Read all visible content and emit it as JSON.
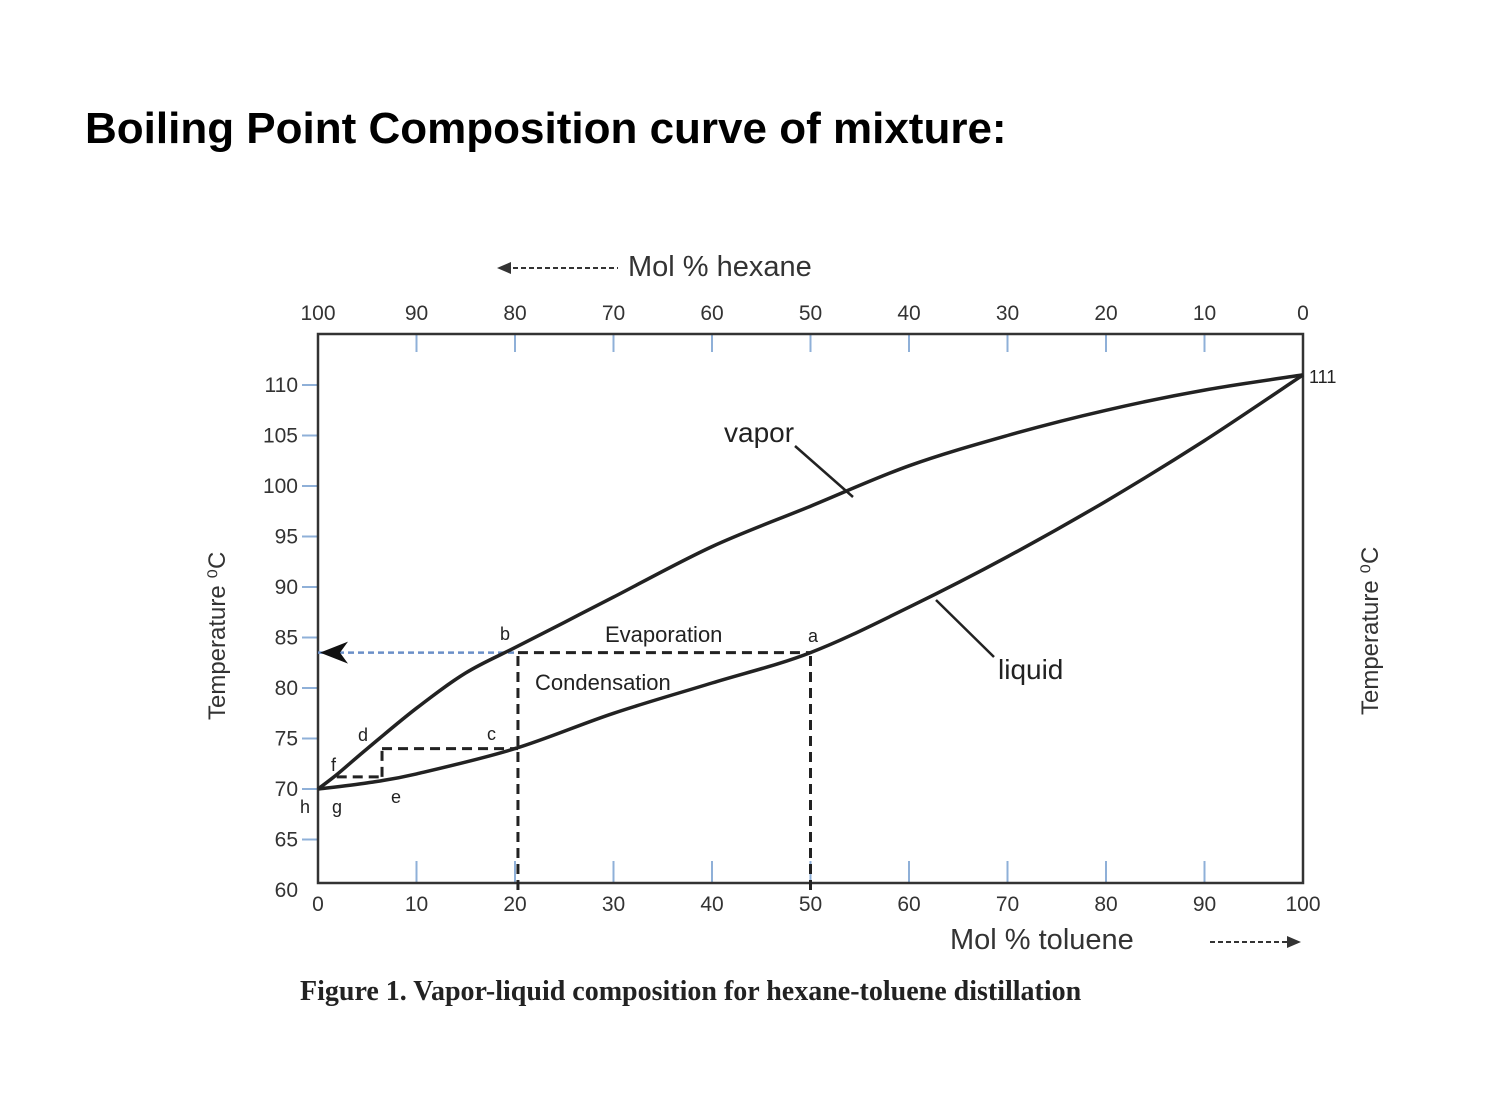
{
  "title": "Boiling Point Composition curve of mixture:",
  "chart_data": {
    "type": "line",
    "caption": "Figure 1. Vapor-liquid composition for hexane-toluene distillation",
    "xlabel": "Mol % toluene",
    "x2label": "Mol % hexane",
    "ylabel": "Temperature ⁰C",
    "y2label": "Temperature ⁰C",
    "xlim": [
      0,
      100
    ],
    "ylim": [
      60,
      110
    ],
    "x_ticks": [
      "0",
      "10",
      "20",
      "30",
      "40",
      "50",
      "60",
      "70",
      "80",
      "90",
      "100"
    ],
    "x2_ticks": [
      "100",
      "90",
      "80",
      "70",
      "60",
      "50",
      "40",
      "30",
      "20",
      "10",
      "0"
    ],
    "y_ticks": [
      "60",
      "65",
      "70",
      "75",
      "80",
      "85",
      "90",
      "95",
      "100",
      "105",
      "110"
    ],
    "y2_end_label": "111",
    "series": [
      {
        "name": "vapor",
        "x": [
          0,
          2,
          5,
          10,
          15,
          20,
          25,
          30,
          40,
          50,
          60,
          70,
          80,
          90,
          100
        ],
        "y": [
          70,
          71.5,
          74,
          78,
          81.5,
          84,
          86.5,
          89,
          94,
          98,
          102,
          105,
          107.5,
          109.5,
          111
        ]
      },
      {
        "name": "liquid",
        "x": [
          0,
          5,
          10,
          20,
          30,
          40,
          50,
          60,
          70,
          80,
          90,
          100
        ],
        "y": [
          70,
          70.6,
          71.5,
          74,
          77.5,
          80.5,
          83.5,
          88,
          93,
          98.5,
          104.5,
          111
        ]
      }
    ],
    "annotations": {
      "vapor": "vapor",
      "liquid": "liquid",
      "evaporation": "Evaporation",
      "condensation": "Condensation",
      "points": [
        "a",
        "b",
        "c",
        "d",
        "e",
        "f",
        "g",
        "h"
      ]
    },
    "construction_lines": [
      {
        "x": [
          50,
          50
        ],
        "y": [
          60,
          83.5
        ]
      },
      {
        "x": [
          20.3,
          50
        ],
        "y": [
          83.5,
          83.5
        ]
      },
      {
        "x": [
          20.3,
          20.3
        ],
        "y": [
          60,
          83.5
        ]
      },
      {
        "x": [
          0,
          20.3
        ],
        "y": [
          83.5,
          83.5
        ]
      },
      {
        "x": [
          6.5,
          20.3
        ],
        "y": [
          74,
          74
        ]
      },
      {
        "x": [
          6.5,
          6.5
        ],
        "y": [
          71.2,
          74
        ]
      },
      {
        "x": [
          1.9,
          6.5
        ],
        "y": [
          71.2,
          71.2
        ]
      }
    ],
    "colors": {
      "curve": "#222222",
      "axis": "#333333",
      "tick": "#8fb0d8",
      "arrow_line": "#6a8fc8"
    }
  }
}
